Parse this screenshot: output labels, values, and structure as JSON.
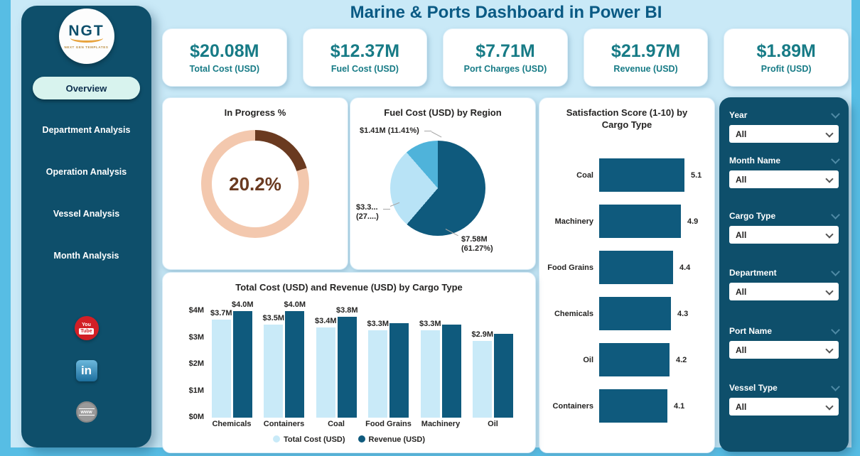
{
  "title": "Marine & Ports Dashboard in Power BI",
  "logo": {
    "text": "NGT",
    "subtext": "NEXT GEN TEMPLATES"
  },
  "sidebar": {
    "items": [
      {
        "label": "Overview",
        "active": true
      },
      {
        "label": "Department Analysis",
        "active": false
      },
      {
        "label": "Operation Analysis",
        "active": false
      },
      {
        "label": "Vessel Analysis",
        "active": false
      },
      {
        "label": "Month Analysis",
        "active": false
      }
    ],
    "social": [
      {
        "name": "youtube",
        "line1": "You",
        "line2": "Tube"
      },
      {
        "name": "linkedin",
        "label": "in"
      },
      {
        "name": "website",
        "label": "www"
      }
    ]
  },
  "kpis": [
    {
      "value": "$20.08M",
      "label": "Total Cost (USD)"
    },
    {
      "value": "$12.37M",
      "label": "Fuel Cost (USD)"
    },
    {
      "value": "$7.71M",
      "label": "Port Charges (USD)"
    },
    {
      "value": "$21.97M",
      "label": "Revenue (USD)"
    },
    {
      "value": "$1.89M",
      "label": "Profit (USD)"
    }
  ],
  "filters": {
    "items": [
      {
        "label": "Year",
        "value": "All"
      },
      {
        "label": "Month Name",
        "value": "All"
      },
      {
        "label": "Cargo Type",
        "value": "All"
      },
      {
        "label": "Department",
        "value": "All"
      },
      {
        "label": "Port Name",
        "value": "All"
      },
      {
        "label": "Vessel Type",
        "value": "All"
      }
    ]
  },
  "chart_data": [
    {
      "type": "donut",
      "title": "In Progress %",
      "center_label": "20.2%",
      "value_pct": 20.2,
      "colors": {
        "filled": "#6a3a20",
        "remainder": "#f3c8ae",
        "label": "#6a3a20"
      }
    },
    {
      "type": "pie",
      "title": "Fuel Cost (USD) by Region",
      "slices": [
        {
          "lines": [
            "$7.58M",
            "(61.27%)"
          ],
          "value_musd": 7.58,
          "pct": 61.27,
          "color": "#0f5a7d"
        },
        {
          "lines": [
            "$3.3...",
            "(27....)"
          ],
          "value_musd": 3.3,
          "pct": 27.32,
          "color": "#b8e3f6"
        },
        {
          "lines": [
            "$1.41M (11.41%)"
          ],
          "value_musd": 1.41,
          "pct": 11.41,
          "color": "#4fb3da"
        }
      ]
    },
    {
      "type": "bar",
      "title": "Satisfaction Score (1-10) by Cargo Type",
      "categories": [
        "Coal",
        "Machinery",
        "Food Grains",
        "Chemicals",
        "Oil",
        "Containers"
      ],
      "values": [
        5.1,
        4.9,
        4.4,
        4.3,
        4.2,
        4.1
      ],
      "xlim": [
        0,
        5.1
      ],
      "bar_color": "#0f5a7d"
    },
    {
      "type": "column",
      "title": "Total Cost (USD) and Revenue (USD) by Cargo Type",
      "categories": [
        "Chemicals",
        "Containers",
        "Coal",
        "Food Grains",
        "Machinery",
        "Oil"
      ],
      "series": [
        {
          "name": "Total Cost (USD)",
          "color": "#c9eaf8",
          "values": [
            3.7,
            3.5,
            3.4,
            3.3,
            3.3,
            2.9
          ],
          "labels": [
            "$3.7M",
            "$3.5M",
            "$3.4M",
            "$3.3M",
            "$3.3M",
            "$2.9M"
          ]
        },
        {
          "name": "Revenue (USD)",
          "color": "#0f5a7d",
          "values": [
            4.0,
            4.0,
            3.8,
            3.55,
            3.5,
            3.15
          ],
          "labels": [
            "$4.0M",
            "$4.0M",
            "$3.8M",
            null,
            null,
            null
          ]
        }
      ],
      "y_ticks": [
        "$0M",
        "$1M",
        "$2M",
        "$3M",
        "$4M"
      ],
      "ylim": [
        0,
        4.4
      ],
      "legend_position": "bottom"
    }
  ]
}
